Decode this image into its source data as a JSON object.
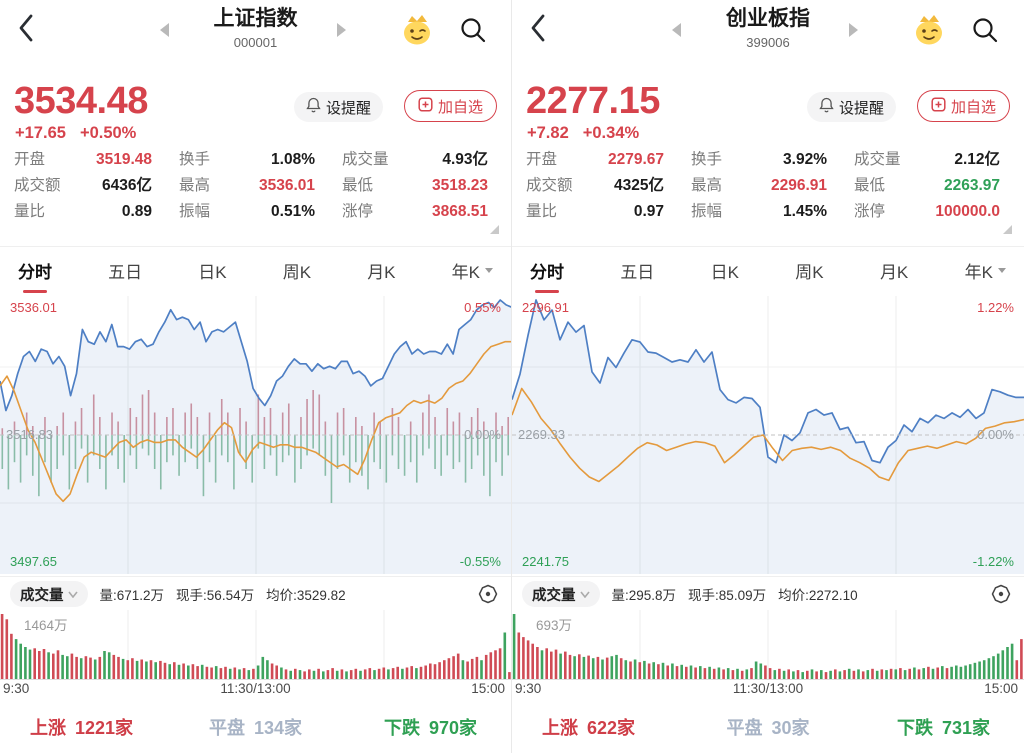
{
  "actions": {
    "alert": "设提醒",
    "watchlist": "加自选"
  },
  "tabs": [
    {
      "label": "分时",
      "active": true
    },
    {
      "label": "五日",
      "active": false
    },
    {
      "label": "日K",
      "active": false
    },
    {
      "label": "周K",
      "active": false
    },
    {
      "label": "月K",
      "active": false
    },
    {
      "label": "年K",
      "active": false,
      "dropdown": true
    }
  ],
  "times": [
    "9:30",
    "11:30/13:00",
    "15:00"
  ],
  "colors": {
    "red": "#d6434c",
    "green": "#2fa057",
    "blue_line": "#4e7fc4",
    "avg_line": "#e49a3d",
    "tick_red": "#d4919b",
    "tick_green": "#8ec2a3",
    "vol_red": "#d04b55",
    "vol_green": "#3ea35f",
    "flat": "#a8b4c6"
  },
  "panels": [
    {
      "header": {
        "title": "上证指数",
        "code": "000001"
      },
      "price": {
        "value": "3534.48",
        "change": "+17.65",
        "change_pct": "+0.50%"
      },
      "stats": [
        {
          "label": "开盘",
          "value": "3519.48",
          "color": "red"
        },
        {
          "label": "换手",
          "value": "1.08%",
          "color": "dark"
        },
        {
          "label": "成交量",
          "value": "4.93亿",
          "color": "dark"
        },
        {
          "label": "成交额",
          "value": "6436亿",
          "color": "dark"
        },
        {
          "label": "最高",
          "value": "3536.01",
          "color": "red"
        },
        {
          "label": "最低",
          "value": "3518.23",
          "color": "red"
        },
        {
          "label": "量比",
          "value": "0.89",
          "color": "dark"
        },
        {
          "label": "振幅",
          "value": "0.51%",
          "color": "dark"
        },
        {
          "label": "涨停",
          "value": "3868.51",
          "color": "red"
        }
      ],
      "chart": {
        "type": "line",
        "high_label": "3536.01",
        "high_pct": "0.55%",
        "mid_label": "3516.83",
        "mid_pct": "0.00%",
        "low_label": "3497.65",
        "low_pct": "-0.55%",
        "ylim": 0.55,
        "price_pct": [
          0.22,
          0.1,
          0.16,
          0.25,
          0.32,
          0.34,
          0.3,
          0.35,
          0.34,
          0.29,
          0.32,
          0.28,
          0.16,
          0.25,
          0.43,
          0.38,
          0.37,
          0.42,
          0.38,
          0.45,
          0.36,
          0.36,
          0.35,
          0.38,
          0.39,
          0.36,
          0.37,
          0.42,
          0.46,
          0.51,
          0.47,
          0.48,
          0.47,
          0.43,
          0.46,
          0.38,
          0.42,
          0.43,
          0.42,
          0.44,
          0.46,
          0.38,
          0.3,
          0.19,
          0.15,
          0.12,
          0.16,
          0.22,
          0.24,
          0.28,
          0.31,
          0.29,
          0.29,
          0.26,
          0.29,
          0.27,
          0.28,
          0.27,
          0.3,
          0.3,
          0.25,
          0.26,
          0.24,
          0.2,
          0.22,
          0.23,
          0.28,
          0.33,
          0.36,
          0.38,
          0.33,
          0.35,
          0.33,
          0.34,
          0.34,
          0.33,
          0.37,
          0.33,
          0.43,
          0.45,
          0.47,
          0.51,
          0.53,
          0.54,
          0.52,
          0.55,
          0.53,
          0.52
        ],
        "avg_pct": [
          0.2,
          0.24,
          0.18,
          0.1,
          0.02,
          -0.03,
          -0.1,
          -0.17,
          -0.24,
          -0.27,
          -0.24,
          -0.16,
          -0.09,
          -0.07,
          -0.08,
          -0.09,
          -0.06,
          -0.03,
          -0.02,
          -0.05,
          -0.03,
          -0.02,
          -0.03,
          -0.03,
          -0.02,
          -0.02,
          -0.05,
          -0.07,
          -0.09,
          -0.06,
          -0.02,
          0.02,
          0.05,
          0.03,
          -0.07,
          -0.11,
          -0.06,
          -0.03,
          -0.04,
          -0.05,
          -0.04,
          -0.04,
          -0.05,
          -0.05,
          -0.06,
          -0.07,
          -0.09,
          -0.11,
          -0.13,
          -0.12,
          -0.14,
          -0.16,
          -0.1,
          -0.02,
          0.05,
          0.07,
          0.08,
          0.09,
          0.12,
          0.14,
          0.13,
          0.14,
          0.13,
          0.15,
          0.19,
          0.21,
          0.22,
          0.25,
          0.29,
          0.33,
          0.36,
          0.37,
          0.38,
          0.38
        ],
        "ticks_up": [
          0.15,
          0,
          0.3,
          0,
          0.5,
          0.2,
          0,
          0.4,
          0,
          0.2,
          0.5,
          0,
          0.3,
          0.6,
          0,
          0.9,
          0.4,
          0,
          0.5,
          0.3,
          0,
          0.6,
          0.4,
          0.9,
          1.0,
          0.5,
          0,
          0.4,
          0.6,
          0,
          0.5,
          0.7,
          0.4,
          0,
          0.5,
          0,
          0.8,
          0.5,
          0,
          0.6,
          0.3,
          0,
          0.9,
          0.4,
          0.6,
          0,
          0.5,
          0.7,
          0,
          0.4,
          0.8,
          1.0,
          0.9,
          0.3,
          0,
          0.5,
          0.6,
          0,
          0.4,
          0.2,
          0,
          0.5,
          0.3,
          0,
          0.6,
          0.4,
          0,
          0.3,
          0,
          0.5,
          0.9,
          0.4,
          0,
          0.6,
          0.3,
          0.5,
          0,
          0.4,
          0.6,
          0.3,
          0,
          0.5,
          0.2,
          0.4
        ],
        "ticks_down": [
          0.5,
          0.8,
          0.4,
          0.7,
          0.3,
          0.6,
          0.9,
          0.4,
          0.7,
          0.5,
          0.3,
          0.8,
          0.5,
          0.2,
          0.7,
          0.3,
          0.5,
          0.8,
          0.3,
          0.5,
          0.7,
          0.3,
          0.5,
          0.2,
          0.3,
          0.5,
          0.8,
          0.4,
          0.3,
          0.6,
          0.4,
          0.2,
          0.5,
          0.9,
          0.4,
          0.7,
          0.3,
          0.4,
          0.8,
          0.3,
          0.5,
          0.7,
          0.2,
          0.5,
          0.3,
          0.6,
          0.4,
          0.3,
          0.7,
          0.5,
          0.3,
          0.2,
          0.3,
          0.6,
          1.0,
          0.5,
          0.3,
          0.7,
          0.4,
          0.6,
          0.8,
          0.4,
          0.5,
          0.7,
          0.3,
          0.5,
          0.6,
          0.4,
          0.7,
          0.3,
          0.2,
          0.5,
          0.6,
          0.3,
          0.5,
          0.4,
          0.7,
          0.5,
          0.3,
          0.6,
          0.9,
          0.4,
          0.6,
          0.3
        ]
      },
      "volume": {
        "selector": "成交量",
        "vol": "量:671.2万",
        "cur": "现手:56.54万",
        "avg": "均价:3529.82",
        "max_label": "1464万",
        "bar_h": [
          1.0,
          0.92,
          0.7,
          0.62,
          0.55,
          0.5,
          0.46,
          0.48,
          0.44,
          0.47,
          0.42,
          0.4,
          0.45,
          0.38,
          0.36,
          0.4,
          0.35,
          0.33,
          0.36,
          0.34,
          0.31,
          0.35,
          0.44,
          0.42,
          0.38,
          0.35,
          0.32,
          0.3,
          0.33,
          0.29,
          0.31,
          0.28,
          0.3,
          0.27,
          0.29,
          0.26,
          0.24,
          0.27,
          0.23,
          0.25,
          0.22,
          0.24,
          0.21,
          0.23,
          0.2,
          0.19,
          0.21,
          0.18,
          0.2,
          0.17,
          0.19,
          0.16,
          0.18,
          0.15,
          0.17,
          0.22,
          0.35,
          0.3,
          0.25,
          0.22,
          0.19,
          0.16,
          0.14,
          0.17,
          0.15,
          0.13,
          0.16,
          0.14,
          0.17,
          0.13,
          0.15,
          0.18,
          0.14,
          0.16,
          0.13,
          0.15,
          0.17,
          0.14,
          0.16,
          0.18,
          0.15,
          0.17,
          0.19,
          0.16,
          0.18,
          0.2,
          0.17,
          0.19,
          0.21,
          0.18,
          0.2,
          0.22,
          0.25,
          0.24,
          0.27,
          0.3,
          0.33,
          0.36,
          0.4,
          0.3,
          0.28,
          0.32,
          0.35,
          0.3,
          0.38,
          0.42,
          0.45,
          0.48,
          0.72,
          0.12
        ],
        "bar_c": [
          "r",
          "r",
          "r",
          "g",
          "g",
          "g",
          "g",
          "r",
          "r",
          "r",
          "g",
          "r",
          "r",
          "g",
          "g",
          "r",
          "r",
          "g",
          "r",
          "r",
          "g",
          "r",
          "g",
          "g",
          "r",
          "r",
          "g",
          "r",
          "r",
          "g",
          "r",
          "g",
          "r",
          "g",
          "r",
          "r",
          "g",
          "r",
          "g",
          "r",
          "g",
          "r",
          "r",
          "g",
          "r",
          "r",
          "g",
          "r",
          "r",
          "g",
          "r",
          "g",
          "r",
          "g",
          "r",
          "g",
          "g",
          "g",
          "r",
          "r",
          "g",
          "r",
          "g",
          "r",
          "g",
          "r",
          "r",
          "g",
          "r",
          "g",
          "r",
          "r",
          "g",
          "r",
          "g",
          "r",
          "r",
          "g",
          "r",
          "r",
          "g",
          "r",
          "r",
          "g",
          "r",
          "r",
          "g",
          "r",
          "r",
          "g",
          "r",
          "r",
          "r",
          "r",
          "r",
          "r",
          "r",
          "r",
          "r",
          "g",
          "r",
          "r",
          "r",
          "g",
          "r",
          "r",
          "r",
          "r",
          "g",
          "r"
        ]
      },
      "breadth": {
        "up_label": "上涨",
        "up_count": "1221家",
        "flat_label": "平盘",
        "flat_count": "134家",
        "down_label": "下跌",
        "down_count": "970家"
      }
    },
    {
      "header": {
        "title": "创业板指",
        "code": "399006"
      },
      "price": {
        "value": "2277.15",
        "change": "+7.82",
        "change_pct": "+0.34%"
      },
      "stats": [
        {
          "label": "开盘",
          "value": "2279.67",
          "color": "red"
        },
        {
          "label": "换手",
          "value": "3.92%",
          "color": "dark"
        },
        {
          "label": "成交量",
          "value": "2.12亿",
          "color": "dark"
        },
        {
          "label": "成交额",
          "value": "4325亿",
          "color": "dark"
        },
        {
          "label": "最高",
          "value": "2296.91",
          "color": "red"
        },
        {
          "label": "最低",
          "value": "2263.97",
          "color": "green"
        },
        {
          "label": "量比",
          "value": "0.97",
          "color": "dark"
        },
        {
          "label": "振幅",
          "value": "1.45%",
          "color": "dark"
        },
        {
          "label": "涨停",
          "value": "100000.0",
          "color": "red"
        }
      ],
      "chart": {
        "type": "line",
        "high_label": "2296.91",
        "high_pct": "1.22%",
        "mid_label": "2269.33",
        "mid_pct": "0.00%",
        "low_label": "2241.75",
        "low_pct": "-1.22%",
        "ylim": 1.22,
        "price_pct": [
          0.32,
          0.55,
          0.9,
          1.22,
          1.04,
          1.13,
          0.86,
          1.02,
          0.93,
          0.99,
          0.57,
          0.47,
          0.7,
          0.61,
          0.74,
          0.86,
          0.84,
          0.75,
          0.74,
          0.7,
          0.66,
          0.68,
          0.66,
          0.77,
          0.66,
          0.75,
          0.41,
          0.32,
          0.29,
          0.34,
          0.33,
          0.25,
          -0.2,
          -0.25,
          0.0,
          -0.05,
          0.02,
          0.2,
          0.23,
          0.18,
          0.2,
          0.05,
          0.07,
          -0.07,
          -0.06,
          -0.23,
          -0.25,
          -0.11,
          -0.05,
          0.09,
          0.03,
          0.15,
          0.11,
          0.18,
          0.15,
          0.2,
          0.16,
          0.23,
          0.15,
          0.2,
          0.41,
          0.39,
          0.36,
          0.34,
          0.34
        ],
        "avg_pct": [
          0.18,
          0.42,
          0.3,
          0.15,
          0.05,
          -0.08,
          -0.2,
          -0.3,
          -0.38,
          -0.42,
          -0.35,
          -0.28,
          -0.2,
          -0.12,
          -0.07,
          -0.09,
          -0.14,
          -0.11,
          -0.08,
          -0.06,
          -0.07,
          -0.1,
          -0.25,
          -0.18,
          -0.1,
          -0.02,
          0.0,
          -0.12,
          -0.23,
          -0.14,
          -0.12,
          -0.11,
          -0.13,
          -0.11,
          -0.14,
          -0.21,
          -0.25,
          -0.3,
          -0.38,
          -0.41,
          -0.25,
          -0.14,
          -0.12,
          -0.1,
          -0.12,
          -0.09,
          -0.06,
          -0.08,
          -0.03,
          0.06,
          0.08,
          0.11,
          0.12,
          0.14
        ],
        "ticks_up": [],
        "ticks_down": []
      },
      "volume": {
        "selector": "成交量",
        "vol": "量:295.8万",
        "cur": "现手:85.09万",
        "avg": "均价:2272.10",
        "max_label": "693万",
        "bar_h": [
          1.0,
          0.72,
          0.65,
          0.6,
          0.55,
          0.5,
          0.45,
          0.48,
          0.43,
          0.46,
          0.4,
          0.43,
          0.38,
          0.36,
          0.39,
          0.35,
          0.37,
          0.33,
          0.35,
          0.31,
          0.34,
          0.36,
          0.38,
          0.33,
          0.3,
          0.28,
          0.31,
          0.27,
          0.29,
          0.25,
          0.27,
          0.24,
          0.26,
          0.22,
          0.25,
          0.21,
          0.23,
          0.2,
          0.22,
          0.19,
          0.21,
          0.18,
          0.2,
          0.17,
          0.19,
          0.16,
          0.18,
          0.15,
          0.17,
          0.14,
          0.16,
          0.18,
          0.28,
          0.25,
          0.22,
          0.18,
          0.15,
          0.17,
          0.14,
          0.16,
          0.13,
          0.15,
          0.12,
          0.14,
          0.16,
          0.13,
          0.15,
          0.12,
          0.14,
          0.16,
          0.13,
          0.15,
          0.17,
          0.14,
          0.16,
          0.13,
          0.15,
          0.17,
          0.14,
          0.16,
          0.15,
          0.17,
          0.16,
          0.18,
          0.15,
          0.17,
          0.19,
          0.16,
          0.18,
          0.2,
          0.17,
          0.19,
          0.21,
          0.18,
          0.2,
          0.22,
          0.2,
          0.22,
          0.24,
          0.26,
          0.28,
          0.3,
          0.33,
          0.36,
          0.4,
          0.45,
          0.5,
          0.55,
          0.3,
          0.62
        ],
        "bar_c": [
          "g",
          "r",
          "r",
          "r",
          "r",
          "r",
          "g",
          "r",
          "r",
          "r",
          "g",
          "r",
          "r",
          "g",
          "r",
          "g",
          "r",
          "g",
          "r",
          "g",
          "r",
          "g",
          "g",
          "r",
          "g",
          "r",
          "g",
          "r",
          "g",
          "r",
          "g",
          "r",
          "g",
          "r",
          "g",
          "r",
          "g",
          "r",
          "g",
          "r",
          "g",
          "r",
          "g",
          "r",
          "g",
          "r",
          "g",
          "r",
          "g",
          "r",
          "g",
          "r",
          "g",
          "g",
          "r",
          "r",
          "g",
          "r",
          "g",
          "r",
          "g",
          "r",
          "g",
          "r",
          "g",
          "r",
          "g",
          "r",
          "g",
          "r",
          "g",
          "r",
          "g",
          "r",
          "g",
          "r",
          "g",
          "r",
          "g",
          "r",
          "g",
          "r",
          "g",
          "r",
          "g",
          "r",
          "g",
          "r",
          "g",
          "r",
          "g",
          "r",
          "g",
          "r",
          "g",
          "g",
          "g",
          "g",
          "g",
          "g",
          "g",
          "g",
          "g",
          "g",
          "g",
          "g",
          "g",
          "g",
          "r",
          "r"
        ]
      },
      "breadth": {
        "up_label": "上涨",
        "up_count": "622家",
        "flat_label": "平盘",
        "flat_count": "30家",
        "down_label": "下跌",
        "down_count": "731家"
      }
    }
  ]
}
